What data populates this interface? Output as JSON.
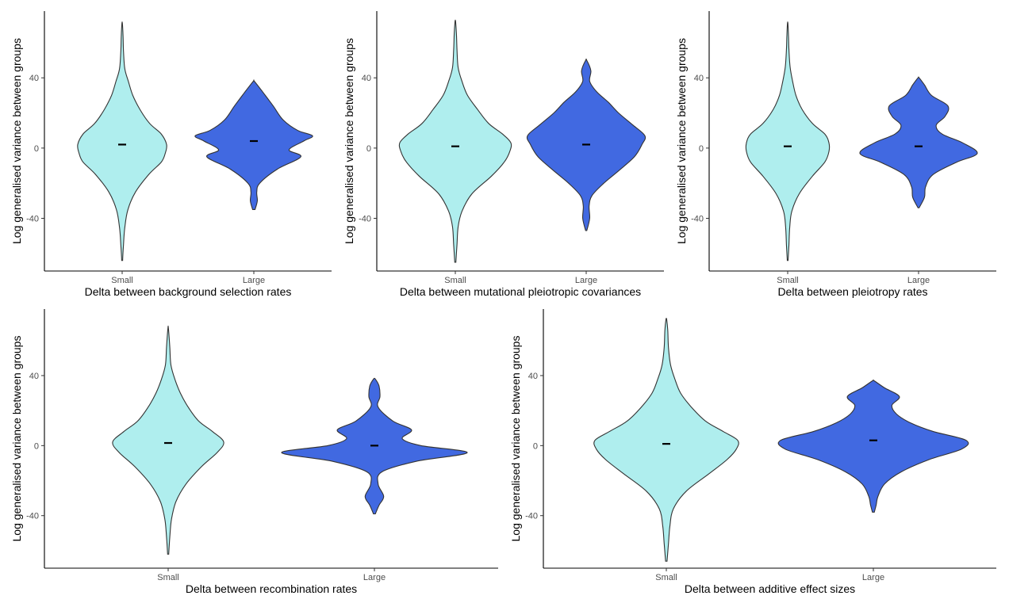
{
  "chart_data": [
    {
      "type": "violin",
      "categories": [
        "Small",
        "Large"
      ],
      "xlabel": "Delta between background selection rates",
      "ylabel": "Log generalised variance between groups",
      "yticks": [
        -40,
        0,
        40
      ],
      "ylim": [
        -70,
        78
      ],
      "grid": false,
      "colors": [
        "#afeeee",
        "#4169e1"
      ],
      "series": [
        {
          "values_mean": 2,
          "range": [
            -64,
            71
          ],
          "profile": [
            [
              -64,
              0.01
            ],
            [
              -55,
              0.03
            ],
            [
              -45,
              0.06
            ],
            [
              -35,
              0.13
            ],
            [
              -25,
              0.3
            ],
            [
              -15,
              0.6
            ],
            [
              -8,
              0.88
            ],
            [
              -3,
              0.97
            ],
            [
              2,
              1.0
            ],
            [
              8,
              0.88
            ],
            [
              14,
              0.62
            ],
            [
              22,
              0.4
            ],
            [
              30,
              0.24
            ],
            [
              38,
              0.14
            ],
            [
              45,
              0.06
            ],
            [
              55,
              0.03
            ],
            [
              64,
              0.02
            ],
            [
              71,
              0.005
            ]
          ]
        },
        {
          "values_mean": 4,
          "range": [
            -35,
            38
          ],
          "profile": [
            [
              -35,
              0.02
            ],
            [
              -30,
              0.06
            ],
            [
              -25,
              0.05
            ],
            [
              -20,
              0.1
            ],
            [
              -12,
              0.4
            ],
            [
              -5,
              0.8
            ],
            [
              -1,
              0.6
            ],
            [
              4,
              0.85
            ],
            [
              7,
              1.0
            ],
            [
              10,
              0.75
            ],
            [
              16,
              0.5
            ],
            [
              24,
              0.33
            ],
            [
              32,
              0.15
            ],
            [
              38,
              0.01
            ]
          ]
        }
      ]
    },
    {
      "type": "violin",
      "categories": [
        "Small",
        "Large"
      ],
      "xlabel": "Delta between mutational pleiotropic covariances",
      "ylabel": "Log generalised variance between groups",
      "yticks": [
        -40,
        0,
        40
      ],
      "ylim": [
        -70,
        78
      ],
      "grid": false,
      "colors": [
        "#afeeee",
        "#4169e1"
      ],
      "series": [
        {
          "values_mean": 1,
          "range": [
            -65,
            72
          ],
          "profile": [
            [
              -65,
              0.01
            ],
            [
              -55,
              0.03
            ],
            [
              -45,
              0.05
            ],
            [
              -36,
              0.12
            ],
            [
              -26,
              0.3
            ],
            [
              -16,
              0.65
            ],
            [
              -8,
              0.88
            ],
            [
              -2,
              0.98
            ],
            [
              3,
              1.0
            ],
            [
              8,
              0.85
            ],
            [
              14,
              0.6
            ],
            [
              22,
              0.4
            ],
            [
              30,
              0.22
            ],
            [
              38,
              0.12
            ],
            [
              46,
              0.05
            ],
            [
              56,
              0.03
            ],
            [
              65,
              0.02
            ],
            [
              72,
              0.005
            ]
          ]
        },
        {
          "values_mean": 2,
          "range": [
            -47,
            50
          ],
          "profile": [
            [
              -47,
              0.01
            ],
            [
              -40,
              0.06
            ],
            [
              -33,
              0.05
            ],
            [
              -27,
              0.1
            ],
            [
              -20,
              0.3
            ],
            [
              -13,
              0.55
            ],
            [
              -5,
              0.82
            ],
            [
              2,
              0.95
            ],
            [
              7,
              1.0
            ],
            [
              13,
              0.8
            ],
            [
              20,
              0.55
            ],
            [
              26,
              0.38
            ],
            [
              32,
              0.18
            ],
            [
              38,
              0.06
            ],
            [
              44,
              0.08
            ],
            [
              50,
              0.01
            ]
          ]
        }
      ]
    },
    {
      "type": "violin",
      "categories": [
        "Small",
        "Large"
      ],
      "xlabel": "Delta between pleiotropy rates",
      "ylabel": "Log generalised variance between groups",
      "yticks": [
        -40,
        0,
        40
      ],
      "ylim": [
        -70,
        78
      ],
      "grid": false,
      "colors": [
        "#afeeee",
        "#4169e1"
      ],
      "series": [
        {
          "values_mean": 1,
          "range": [
            -64,
            71
          ],
          "profile": [
            [
              -64,
              0.01
            ],
            [
              -55,
              0.03
            ],
            [
              -45,
              0.05
            ],
            [
              -36,
              0.1
            ],
            [
              -26,
              0.28
            ],
            [
              -16,
              0.6
            ],
            [
              -8,
              0.9
            ],
            [
              -2,
              1.0
            ],
            [
              3,
              1.0
            ],
            [
              8,
              0.9
            ],
            [
              14,
              0.6
            ],
            [
              22,
              0.35
            ],
            [
              30,
              0.2
            ],
            [
              38,
              0.12
            ],
            [
              46,
              0.06
            ],
            [
              56,
              0.03
            ],
            [
              64,
              0.02
            ],
            [
              71,
              0.005
            ]
          ]
        },
        {
          "values_mean": 1,
          "range": [
            -34,
            40
          ],
          "profile": [
            [
              -34,
              0.01
            ],
            [
              -28,
              0.1
            ],
            [
              -22,
              0.12
            ],
            [
              -15,
              0.25
            ],
            [
              -8,
              0.65
            ],
            [
              -3,
              1.0
            ],
            [
              3,
              0.75
            ],
            [
              8,
              0.4
            ],
            [
              13,
              0.3
            ],
            [
              18,
              0.45
            ],
            [
              24,
              0.5
            ],
            [
              30,
              0.22
            ],
            [
              36,
              0.1
            ],
            [
              40,
              0.01
            ]
          ]
        }
      ]
    },
    {
      "type": "violin",
      "categories": [
        "Small",
        "Large"
      ],
      "xlabel": "Delta between recombination rates",
      "ylabel": "Log generalised variance between groups",
      "yticks": [
        -40,
        0,
        40
      ],
      "ylim": [
        -70,
        78
      ],
      "grid": false,
      "colors": [
        "#afeeee",
        "#4169e1"
      ],
      "series": [
        {
          "values_mean": 1.5,
          "range": [
            -62,
            67
          ],
          "profile": [
            [
              -62,
              0.01
            ],
            [
              -52,
              0.03
            ],
            [
              -42,
              0.06
            ],
            [
              -32,
              0.14
            ],
            [
              -22,
              0.32
            ],
            [
              -12,
              0.6
            ],
            [
              -4,
              0.88
            ],
            [
              2,
              1.0
            ],
            [
              8,
              0.8
            ],
            [
              14,
              0.55
            ],
            [
              22,
              0.36
            ],
            [
              30,
              0.22
            ],
            [
              38,
              0.12
            ],
            [
              46,
              0.05
            ],
            [
              56,
              0.03
            ],
            [
              67,
              0.005
            ]
          ]
        },
        {
          "values_mean": 0,
          "range": [
            -39,
            38
          ],
          "profile": [
            [
              -39,
              0.01
            ],
            [
              -34,
              0.05
            ],
            [
              -29,
              0.1
            ],
            [
              -22,
              0.04
            ],
            [
              -15,
              0.08
            ],
            [
              -9,
              0.45
            ],
            [
              -4,
              1.0
            ],
            [
              0,
              0.5
            ],
            [
              4,
              0.3
            ],
            [
              9,
              0.4
            ],
            [
              14,
              0.2
            ],
            [
              22,
              0.04
            ],
            [
              28,
              0.06
            ],
            [
              34,
              0.05
            ],
            [
              38,
              0.01
            ]
          ]
        }
      ]
    },
    {
      "type": "violin",
      "categories": [
        "Small",
        "Large"
      ],
      "xlabel": "Delta between additive effect sizes",
      "ylabel": "Log generalised variance between groups",
      "yticks": [
        -40,
        0,
        40
      ],
      "ylim": [
        -70,
        78
      ],
      "grid": false,
      "colors": [
        "#afeeee",
        "#4169e1"
      ],
      "series": [
        {
          "values_mean": 1,
          "range": [
            -66,
            72
          ],
          "profile": [
            [
              -66,
              0.01
            ],
            [
              -56,
              0.03
            ],
            [
              -46,
              0.05
            ],
            [
              -36,
              0.1
            ],
            [
              -26,
              0.28
            ],
            [
              -16,
              0.6
            ],
            [
              -8,
              0.85
            ],
            [
              -2,
              0.98
            ],
            [
              3,
              1.0
            ],
            [
              8,
              0.8
            ],
            [
              14,
              0.55
            ],
            [
              22,
              0.35
            ],
            [
              30,
              0.2
            ],
            [
              38,
              0.12
            ],
            [
              46,
              0.06
            ],
            [
              56,
              0.03
            ],
            [
              66,
              0.02
            ],
            [
              72,
              0.005
            ]
          ]
        },
        {
          "values_mean": 3,
          "range": [
            -38,
            37
          ],
          "profile": [
            [
              -38,
              0.01
            ],
            [
              -34,
              0.03
            ],
            [
              -29,
              0.05
            ],
            [
              -22,
              0.12
            ],
            [
              -15,
              0.3
            ],
            [
              -8,
              0.6
            ],
            [
              -2,
              0.95
            ],
            [
              3,
              1.0
            ],
            [
              8,
              0.65
            ],
            [
              13,
              0.4
            ],
            [
              18,
              0.25
            ],
            [
              23,
              0.2
            ],
            [
              28,
              0.28
            ],
            [
              33,
              0.12
            ],
            [
              37,
              0.01
            ]
          ]
        }
      ]
    }
  ]
}
